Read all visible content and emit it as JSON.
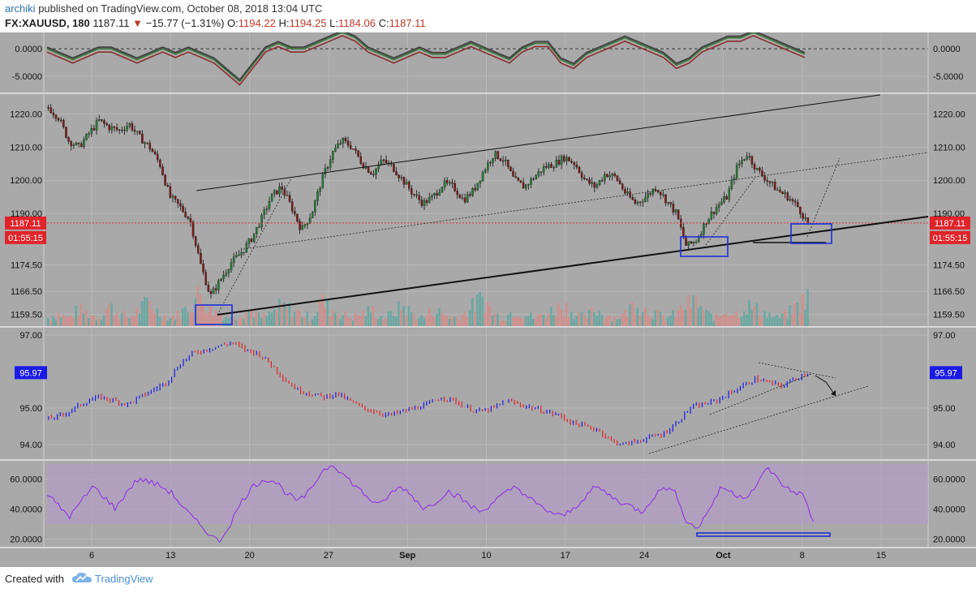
{
  "header": {
    "author": "archiki",
    "published_text": " published on TradingView.com, October 08, 2018 13:04 UTC",
    "symbol": "FX:XAUUSD, 180",
    "last": "1187.11",
    "change": "−15.77 (−1.31%)",
    "open_label": "O:",
    "open": "1194.22",
    "high_label": "H:",
    "high": "1194.25",
    "low_label": "L:",
    "low": "1184.06",
    "close_label": "C:",
    "close": "1187.11"
  },
  "footer": {
    "created_with": "Created with",
    "brand": "TradingView"
  },
  "colors": {
    "background": "#a9a9a9",
    "bullish": "#2a7a3b",
    "bearish": "#7a1c1c",
    "trendline": "#000000",
    "box": "#1f2fd8",
    "rsi": "#8a2be2",
    "rsi_band": "#b39bc8",
    "price_tag": "#e0242a",
    "index_tag": "#1a1ae6"
  },
  "chart_data": [
    {
      "type": "line",
      "panel": "oscillator",
      "y_ticks": [
        "0.0000",
        "-5.0000"
      ],
      "ylim": [
        -8,
        3
      ],
      "series": [
        {
          "values": [
            0,
            -1,
            -2,
            -1,
            0,
            0,
            -1,
            -2,
            -1,
            0,
            -1,
            0,
            -1,
            -2,
            -4,
            -6,
            -3,
            0,
            1,
            0,
            0,
            1,
            2,
            3,
            2,
            0,
            -1,
            -2,
            -1,
            0,
            -1,
            -1,
            0,
            1,
            0,
            -1,
            -2,
            0,
            1,
            1,
            -2,
            -3,
            -1,
            0,
            1,
            2,
            1,
            0,
            -1,
            -3,
            -2,
            0,
            1,
            2,
            2,
            3,
            2,
            1,
            0,
            -1
          ]
        }
      ]
    },
    {
      "type": "candlestick",
      "panel": "price",
      "x_ticks": [
        "6",
        "13",
        "20",
        "27",
        "Sep",
        "10",
        "17",
        "24",
        "Oct",
        "8",
        "15"
      ],
      "y_ticks": [
        "1220.00",
        "1210.00",
        "1200.00",
        "1190.00",
        "1174.50",
        "1166.50",
        "1159.50"
      ],
      "ylim": [
        1156,
        1226
      ],
      "last_price_label": "1187.11",
      "countdown_label": "01:55:15",
      "close_path": [
        1222,
        1219,
        1212,
        1210,
        1214,
        1218,
        1216,
        1215,
        1217,
        1213,
        1210,
        1205,
        1195,
        1192,
        1188,
        1175,
        1165,
        1170,
        1175,
        1178,
        1182,
        1188,
        1195,
        1198,
        1192,
        1185,
        1190,
        1200,
        1208,
        1212,
        1210,
        1205,
        1202,
        1206,
        1204,
        1200,
        1196,
        1193,
        1195,
        1199,
        1198,
        1194,
        1197,
        1203,
        1208,
        1206,
        1200,
        1198,
        1201,
        1204,
        1205,
        1207,
        1205,
        1200,
        1198,
        1202,
        1201,
        1196,
        1193,
        1195,
        1198,
        1194,
        1190,
        1180,
        1182,
        1188,
        1192,
        1195,
        1204,
        1208,
        1203,
        1200,
        1197,
        1195,
        1192,
        1187
      ],
      "volume_path": [
        2,
        3,
        2,
        4,
        3,
        2,
        5,
        3,
        2,
        4,
        6,
        3,
        2,
        3,
        5,
        8,
        4,
        3,
        2,
        3,
        4,
        2,
        3,
        5,
        4,
        3,
        2,
        6,
        4,
        3,
        2,
        3,
        4,
        2,
        3,
        5,
        3,
        2,
        4,
        3,
        2,
        3,
        5,
        7,
        3,
        2,
        4,
        3,
        2,
        3,
        4,
        5,
        3,
        2,
        4,
        3,
        2,
        3,
        6,
        4,
        3,
        2,
        3,
        5,
        6,
        3,
        2,
        4,
        3,
        5,
        4,
        3,
        2,
        3,
        5,
        7
      ]
    },
    {
      "type": "ohlc",
      "panel": "index",
      "y_ticks": [
        "97.00",
        "95.00",
        "94.00"
      ],
      "ylim": [
        93.6,
        97.2
      ],
      "last_value_label": "95.97",
      "close_path": [
        94.7,
        94.8,
        95.0,
        95.2,
        95.3,
        95.2,
        95.1,
        95.3,
        95.5,
        95.7,
        96.2,
        96.5,
        96.6,
        96.7,
        96.8,
        96.6,
        96.5,
        96.2,
        95.8,
        95.5,
        95.4,
        95.3,
        95.4,
        95.2,
        95.0,
        94.9,
        94.8,
        94.9,
        95.0,
        95.1,
        95.3,
        95.2,
        95.0,
        94.9,
        95.0,
        95.2,
        95.1,
        95.0,
        94.9,
        94.8,
        94.6,
        94.5,
        94.4,
        94.1,
        94.0,
        94.1,
        94.2,
        94.3,
        94.6,
        95.0,
        95.1,
        95.2,
        95.4,
        95.6,
        95.8,
        95.7,
        95.6,
        95.8,
        95.97
      ]
    },
    {
      "type": "line",
      "panel": "rsi",
      "y_ticks": [
        "60.0000",
        "40.0000",
        "20.0000"
      ],
      "ylim": [
        15,
        72
      ],
      "band": [
        30,
        70
      ],
      "series": [
        {
          "values": [
            50,
            42,
            35,
            45,
            55,
            48,
            40,
            52,
            60,
            58,
            55,
            50,
            40,
            32,
            25,
            18,
            30,
            45,
            55,
            60,
            58,
            50,
            45,
            52,
            65,
            70,
            62,
            55,
            48,
            42,
            50,
            55,
            48,
            40,
            45,
            52,
            48,
            42,
            38,
            45,
            50,
            55,
            48,
            42,
            38,
            35,
            40,
            48,
            55,
            50,
            45,
            42,
            38,
            48,
            55,
            50,
            30,
            28,
            42,
            55,
            50,
            48,
            55,
            68,
            58,
            52,
            50,
            32
          ]
        }
      ]
    }
  ]
}
